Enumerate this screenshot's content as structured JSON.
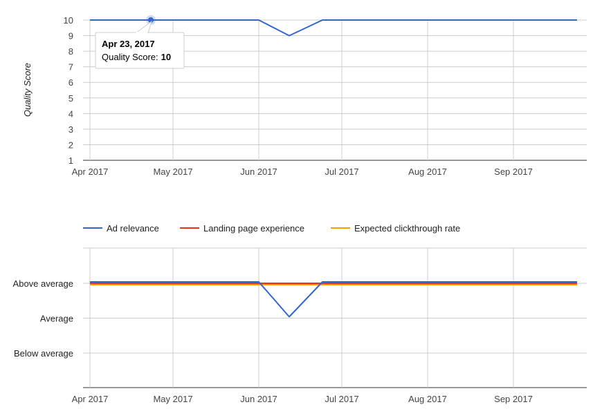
{
  "chart_data": [
    {
      "type": "line",
      "ylabel": "Quality Score",
      "xlabel": "",
      "ylim": [
        1,
        10
      ],
      "y_ticks": [
        "1",
        "2",
        "3",
        "4",
        "5",
        "6",
        "7",
        "8",
        "9",
        "10"
      ],
      "x_range": [
        "2017-04-01",
        "2017-09-30"
      ],
      "x_ticks": [
        {
          "date": "2017-04-01",
          "label": "Apr 2017"
        },
        {
          "date": "2017-05-01",
          "label": "May 2017"
        },
        {
          "date": "2017-06-01",
          "label": "Jun 2017"
        },
        {
          "date": "2017-07-01",
          "label": "Jul 2017"
        },
        {
          "date": "2017-08-01",
          "label": "Aug 2017"
        },
        {
          "date": "2017-09-01",
          "label": "Sep 2017"
        }
      ],
      "grid": true,
      "series": [
        {
          "color": "#3366cc",
          "points": [
            {
              "x": "2017-04-01",
              "y": 10
            },
            {
              "x": "2017-06-01",
              "y": 10
            },
            {
              "x": "2017-06-12",
              "y": 9
            },
            {
              "x": "2017-06-24",
              "y": 10
            },
            {
              "x": "2017-09-24",
              "y": 10
            }
          ]
        }
      ],
      "highlight": {
        "x": "2017-04-23",
        "y": 10
      },
      "tooltip": {
        "date": "Apr 23, 2017",
        "label": "Quality Score:",
        "value": "10"
      }
    },
    {
      "type": "line",
      "xlabel": "",
      "ylabel": "",
      "y_categories": [
        "Below average",
        "Average",
        "Above average"
      ],
      "x_range": [
        "2017-04-01",
        "2017-09-30"
      ],
      "x_ticks": [
        {
          "date": "2017-04-01",
          "label": "Apr 2017"
        },
        {
          "date": "2017-05-01",
          "label": "May 2017"
        },
        {
          "date": "2017-06-01",
          "label": "Jun 2017"
        },
        {
          "date": "2017-07-01",
          "label": "Jul 2017"
        },
        {
          "date": "2017-08-01",
          "label": "Aug 2017"
        },
        {
          "date": "2017-09-01",
          "label": "Sep 2017"
        }
      ],
      "grid": true,
      "legend_position": "top",
      "series": [
        {
          "name": "Ad relevance",
          "color": "#3366cc",
          "points": [
            {
              "x": "2017-04-01",
              "y": "Above average"
            },
            {
              "x": "2017-06-01",
              "y": "Above average"
            },
            {
              "x": "2017-06-12",
              "y": "Average"
            },
            {
              "x": "2017-06-24",
              "y": "Above average"
            },
            {
              "x": "2017-09-24",
              "y": "Above average"
            }
          ]
        },
        {
          "name": "Landing page experience",
          "color": "#dc3912",
          "points": [
            {
              "x": "2017-04-01",
              "y": "Above average"
            },
            {
              "x": "2017-09-24",
              "y": "Above average"
            }
          ]
        },
        {
          "name": "Expected clickthrough rate",
          "color": "#ff9900",
          "points": [
            {
              "x": "2017-04-01",
              "y": "Above average"
            },
            {
              "x": "2017-09-24",
              "y": "Above average"
            }
          ]
        }
      ]
    }
  ]
}
